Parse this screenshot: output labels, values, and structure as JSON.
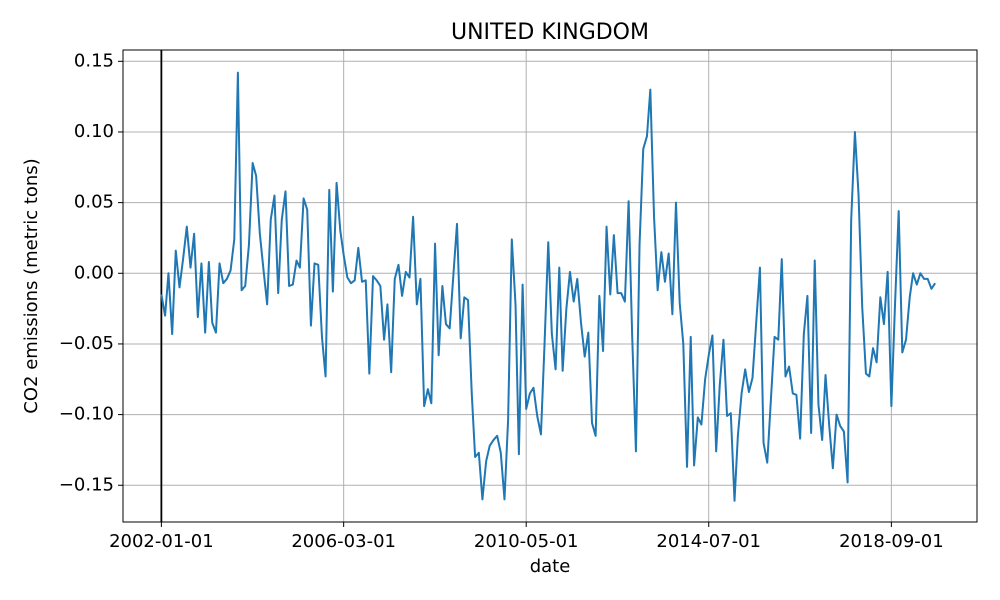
{
  "chart_data": {
    "type": "line",
    "title": "UNITED KINGDOM",
    "x_label": "date",
    "y_label": "CO2 emissions (metric tons)",
    "color": "#1f77b4",
    "grid": true,
    "vline": "2002-01-01",
    "xlim": [
      "2001-02-15",
      "2020-08-15"
    ],
    "xticks": [
      "2002-01-01",
      "2006-03-01",
      "2010-05-01",
      "2014-07-01",
      "2018-09-01"
    ],
    "ylim": [
      -0.176,
      0.158
    ],
    "yticks": [
      {
        "value": -0.15,
        "label": "−0.15"
      },
      {
        "value": -0.1,
        "label": "−0.10"
      },
      {
        "value": -0.05,
        "label": "−0.05"
      },
      {
        "value": 0,
        "label": "0.00"
      },
      0.05,
      {
        "value": 0.1,
        "label": "0.10"
      },
      0.15
    ],
    "x": [
      "2002-01-01",
      "2002-02-01",
      "2002-03-01",
      "2002-04-01",
      "2002-05-01",
      "2002-06-01",
      "2002-07-01",
      "2002-08-01",
      "2002-09-01",
      "2002-10-01",
      "2002-11-01",
      "2002-12-01",
      "2003-01-01",
      "2003-02-01",
      "2003-03-01",
      "2003-04-01",
      "2003-05-01",
      "2003-06-01",
      "2003-07-01",
      "2003-08-01",
      "2003-09-01",
      "2003-10-01",
      "2003-11-01",
      "2003-12-01",
      "2004-01-01",
      "2004-02-01",
      "2004-03-01",
      "2004-04-01",
      "2004-05-01",
      "2004-06-01",
      "2004-07-01",
      "2004-08-01",
      "2004-09-01",
      "2004-10-01",
      "2004-11-01",
      "2004-12-01",
      "2005-01-01",
      "2005-02-01",
      "2005-03-01",
      "2005-04-01",
      "2005-05-01",
      "2005-06-01",
      "2005-07-01",
      "2005-08-01",
      "2005-09-01",
      "2005-10-01",
      "2005-11-01",
      "2005-12-01",
      "2006-01-01",
      "2006-02-01",
      "2006-03-01",
      "2006-04-01",
      "2006-05-01",
      "2006-06-01",
      "2006-07-01",
      "2006-08-01",
      "2006-09-01",
      "2006-10-01",
      "2006-11-01",
      "2006-12-01",
      "2007-01-01",
      "2007-02-01",
      "2007-03-01",
      "2007-04-01",
      "2007-05-01",
      "2007-06-01",
      "2007-07-01",
      "2007-08-01",
      "2007-09-01",
      "2007-10-01",
      "2007-11-01",
      "2007-12-01",
      "2008-01-01",
      "2008-02-01",
      "2008-03-01",
      "2008-04-01",
      "2008-05-01",
      "2008-06-01",
      "2008-07-01",
      "2008-08-01",
      "2008-09-01",
      "2008-10-01",
      "2008-11-01",
      "2008-12-01",
      "2009-01-01",
      "2009-02-01",
      "2009-03-01",
      "2009-04-01",
      "2009-05-01",
      "2009-06-01",
      "2009-07-01",
      "2009-08-01",
      "2009-09-01",
      "2009-10-01",
      "2009-11-01",
      "2009-12-01",
      "2010-01-01",
      "2010-02-01",
      "2010-03-01",
      "2010-04-01",
      "2010-05-01",
      "2010-06-01",
      "2010-07-01",
      "2010-08-01",
      "2010-09-01",
      "2010-10-01",
      "2010-11-01",
      "2010-12-01",
      "2011-01-01",
      "2011-02-01",
      "2011-03-01",
      "2011-04-01",
      "2011-05-01",
      "2011-06-01",
      "2011-07-01",
      "2011-08-01",
      "2011-09-01",
      "2011-10-01",
      "2011-11-01",
      "2011-12-01",
      "2012-01-01",
      "2012-02-01",
      "2012-03-01",
      "2012-04-01",
      "2012-05-01",
      "2012-06-01",
      "2012-07-01",
      "2012-08-01",
      "2012-09-01",
      "2012-10-01",
      "2012-11-01",
      "2012-12-01",
      "2013-01-01",
      "2013-02-01",
      "2013-03-01",
      "2013-04-01",
      "2013-05-01",
      "2013-06-01",
      "2013-07-01",
      "2013-08-01",
      "2013-09-01",
      "2013-10-01",
      "2013-11-01",
      "2013-12-01",
      "2014-01-01",
      "2014-02-01",
      "2014-03-01",
      "2014-04-01",
      "2014-05-01",
      "2014-06-01",
      "2014-07-01",
      "2014-08-01",
      "2014-09-01",
      "2014-10-01",
      "2014-11-01",
      "2014-12-01",
      "2015-01-01",
      "2015-02-01",
      "2015-03-01",
      "2015-04-01",
      "2015-05-01",
      "2015-06-01",
      "2015-07-01",
      "2015-08-01",
      "2015-09-01",
      "2015-10-01",
      "2015-11-01",
      "2015-12-01",
      "2016-01-01",
      "2016-02-01",
      "2016-03-01",
      "2016-04-01",
      "2016-05-01",
      "2016-06-01",
      "2016-07-01",
      "2016-08-01",
      "2016-09-01",
      "2016-10-01",
      "2016-11-01",
      "2016-12-01",
      "2017-01-01",
      "2017-02-01",
      "2017-03-01",
      "2017-04-01",
      "2017-05-01",
      "2017-06-01",
      "2017-07-01",
      "2017-08-01",
      "2017-09-01",
      "2017-10-01",
      "2017-11-01",
      "2017-12-01",
      "2018-01-01",
      "2018-02-01",
      "2018-03-01",
      "2018-04-01",
      "2018-05-01",
      "2018-06-01",
      "2018-07-01",
      "2018-08-01",
      "2018-09-01",
      "2018-10-01",
      "2018-11-01",
      "2018-12-01",
      "2019-01-01",
      "2019-02-01",
      "2019-03-01",
      "2019-04-01",
      "2019-05-01",
      "2019-06-01",
      "2019-07-01",
      "2019-08-01",
      "2019-09-01"
    ],
    "values": [
      -0.015,
      -0.03,
      0.0,
      -0.043,
      0.016,
      -0.01,
      0.01,
      0.033,
      0.004,
      0.028,
      -0.031,
      0.007,
      -0.042,
      0.008,
      -0.035,
      -0.042,
      0.007,
      -0.007,
      -0.004,
      0.002,
      0.024,
      0.142,
      -0.012,
      -0.009,
      0.02,
      0.078,
      0.069,
      0.028,
      0.003,
      -0.022,
      0.038,
      0.055,
      -0.014,
      0.038,
      0.058,
      -0.009,
      -0.008,
      0.009,
      0.004,
      0.053,
      0.045,
      -0.037,
      0.007,
      0.006,
      -0.045,
      -0.073,
      0.059,
      -0.013,
      0.064,
      0.03,
      0.013,
      -0.003,
      -0.007,
      -0.005,
      0.018,
      -0.006,
      -0.005,
      -0.071,
      -0.002,
      -0.005,
      -0.009,
      -0.047,
      -0.022,
      -0.07,
      -0.004,
      0.006,
      -0.016,
      0.001,
      -0.003,
      0.04,
      -0.022,
      -0.004,
      -0.094,
      -0.082,
      -0.092,
      0.021,
      -0.058,
      -0.009,
      -0.036,
      -0.039,
      -0.001,
      0.035,
      -0.046,
      -0.017,
      -0.019,
      -0.085,
      -0.13,
      -0.127,
      -0.16,
      -0.133,
      -0.122,
      -0.118,
      -0.115,
      -0.127,
      -0.16,
      -0.104,
      0.024,
      -0.022,
      -0.128,
      -0.008,
      -0.096,
      -0.085,
      -0.081,
      -0.101,
      -0.114,
      -0.05,
      0.022,
      -0.043,
      -0.068,
      0.004,
      -0.069,
      -0.025,
      0.001,
      -0.02,
      -0.004,
      -0.035,
      -0.059,
      -0.042,
      -0.106,
      -0.115,
      -0.016,
      -0.055,
      0.033,
      -0.015,
      0.027,
      -0.014,
      -0.014,
      -0.02,
      0.051,
      -0.045,
      -0.126,
      0.02,
      0.088,
      0.097,
      0.13,
      0.04,
      -0.012,
      0.015,
      -0.006,
      0.014,
      -0.029,
      0.05,
      -0.021,
      -0.05,
      -0.137,
      -0.045,
      -0.136,
      -0.102,
      -0.107,
      -0.075,
      -0.058,
      -0.044,
      -0.126,
      -0.079,
      -0.047,
      -0.101,
      -0.099,
      -0.161,
      -0.115,
      -0.085,
      -0.068,
      -0.084,
      -0.074,
      -0.035,
      0.004,
      -0.12,
      -0.134,
      -0.09,
      -0.045,
      -0.047,
      0.01,
      -0.073,
      -0.066,
      -0.085,
      -0.086,
      -0.117,
      -0.043,
      -0.016,
      -0.113,
      0.009,
      -0.093,
      -0.118,
      -0.072,
      -0.108,
      -0.138,
      -0.1,
      -0.108,
      -0.112,
      -0.148,
      0.038,
      0.1,
      0.056,
      -0.024,
      -0.071,
      -0.073,
      -0.053,
      -0.063,
      -0.017,
      -0.036,
      0.001,
      -0.094,
      -0.023,
      0.044,
      -0.056,
      -0.047,
      -0.017,
      0.0,
      -0.008,
      0.0,
      -0.004,
      -0.004,
      -0.011,
      -0.007
    ]
  }
}
